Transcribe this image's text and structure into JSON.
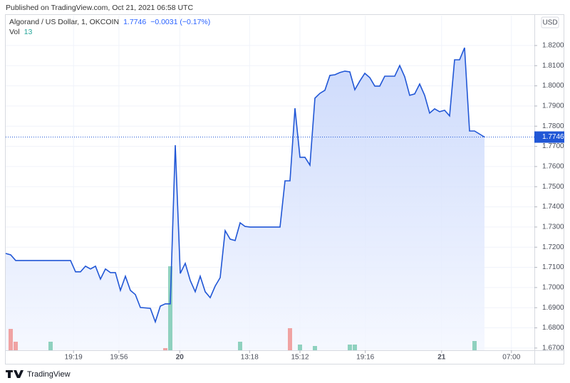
{
  "published": "Published on TradingView.com, Oct 21, 2021 06:58 UTC",
  "logo": "TradingView",
  "chart_data": {
    "type": "area",
    "title": "Algorand / US Dollar, 1, OKCOIN",
    "change": "−0.0031 (−0.17%)",
    "currency": "USD",
    "x": [
      0,
      1,
      2,
      13,
      14,
      15,
      16,
      17,
      18,
      19,
      20,
      21,
      22,
      23,
      24,
      25,
      26,
      27,
      29,
      30,
      31,
      32,
      33,
      34,
      35,
      36,
      37,
      38,
      39,
      40,
      41,
      42,
      43,
      44,
      45,
      46,
      47,
      48,
      49,
      55,
      56,
      57,
      58,
      59,
      60,
      61,
      62,
      63,
      64,
      65,
      66,
      67,
      68,
      69,
      70,
      71,
      72,
      73,
      74,
      75,
      76,
      78,
      79,
      80,
      81,
      82,
      83,
      84,
      85,
      86,
      87,
      88,
      89,
      90,
      91,
      92,
      93,
      94,
      96
    ],
    "series": [
      {
        "name": "Algorand / US Dollar, 1, OKCOIN",
        "color": "#2157d6",
        "values": [
          1.7169,
          1.7162,
          1.7134,
          1.7134,
          1.7078,
          1.7078,
          1.7106,
          1.7092,
          1.7106,
          1.7042,
          1.7092,
          1.7074,
          1.7074,
          1.6986,
          1.7056,
          1.6986,
          1.6965,
          1.6901,
          1.6897,
          1.683,
          1.6908,
          1.6919,
          1.6919,
          1.7706,
          1.707,
          1.712,
          1.7035,
          1.6979,
          1.7056,
          1.6979,
          1.695,
          1.7007,
          1.7049,
          1.7282,
          1.724,
          1.7233,
          1.7321,
          1.7303,
          1.73,
          1.73,
          1.7529,
          1.7529,
          1.7889,
          1.7646,
          1.7646,
          1.7607,
          1.7939,
          1.7963,
          1.7978,
          1.8052,
          1.8055,
          1.8066,
          1.8073,
          1.8069,
          1.7981,
          1.8024,
          1.8062,
          1.8041,
          1.7999,
          1.7999,
          1.8048,
          1.8048,
          1.8101,
          1.8045,
          1.7953,
          1.796,
          1.8009,
          1.7953,
          1.7865,
          1.7886,
          1.7872,
          1.7879,
          1.7851,
          1.8129,
          1.8129,
          1.8189,
          1.7776,
          1.7776,
          1.7746
        ]
      }
    ],
    "volume": {
      "label": "Vol",
      "x": [
        1,
        2,
        9,
        32,
        33,
        47,
        57,
        59,
        62,
        69,
        70,
        94
      ],
      "values": [
        30,
        12,
        12,
        3,
        118,
        12,
        31,
        8,
        6,
        8,
        8,
        13
      ],
      "colors": [
        "#f0a3a3",
        "#f0a3a3",
        "#8fd1bf",
        "#f0a3a3",
        "#8fd1bf",
        "#8fd1bf",
        "#f0a3a3",
        "#8fd1bf",
        "#8fd1bf",
        "#8fd1bf",
        "#8fd1bf",
        "#8fd1bf"
      ]
    },
    "xlim": [
      0,
      106
    ],
    "ylim": [
      1.6689,
      1.8348
    ],
    "xticks": [
      {
        "value": 13.6,
        "label": "19:19"
      },
      {
        "value": 22.7,
        "label": "19:56"
      },
      {
        "value": 34.9,
        "label": "20"
      },
      {
        "value": 48.9,
        "label": "13:18"
      },
      {
        "value": 59,
        "label": "15:12"
      },
      {
        "value": 72.1,
        "label": "19:16"
      },
      {
        "value": 87.4,
        "label": "21"
      },
      {
        "value": 101.4,
        "label": "07:00"
      }
    ],
    "yticks": [
      {
        "value": 1.67,
        "label": "1.6700"
      },
      {
        "value": 1.68,
        "label": "1.6800"
      },
      {
        "value": 1.69,
        "label": "1.6900"
      },
      {
        "value": 1.7,
        "label": "1.7000"
      },
      {
        "value": 1.71,
        "label": "1.7100"
      },
      {
        "value": 1.72,
        "label": "1.7200"
      },
      {
        "value": 1.73,
        "label": "1.7300"
      },
      {
        "value": 1.74,
        "label": "1.7400"
      },
      {
        "value": 1.75,
        "label": "1.7500"
      },
      {
        "value": 1.76,
        "label": "1.7600"
      },
      {
        "value": 1.77,
        "label": "1.7700"
      },
      {
        "value": 1.78,
        "label": "1.7800"
      },
      {
        "value": 1.79,
        "label": "1.7900"
      },
      {
        "value": 1.8,
        "label": "1.8000"
      },
      {
        "value": 1.81,
        "label": "1.8100"
      },
      {
        "value": 1.82,
        "label": "1.8200"
      }
    ],
    "grid": true
  }
}
